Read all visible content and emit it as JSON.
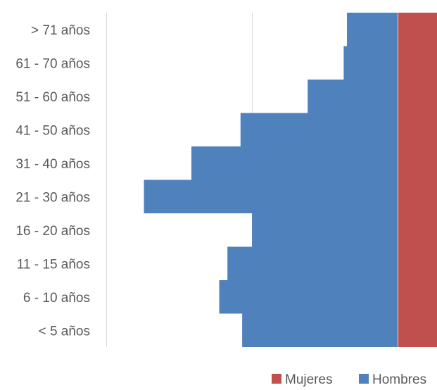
{
  "chart_data": {
    "type": "bar",
    "orientation": "horizontal",
    "layout": "population-pyramid",
    "categories": [
      "< 5 años",
      "6 - 10 años",
      "11 - 15 años",
      "16 - 20 años",
      "21 - 30 años",
      "31 - 40 años",
      "41 - 50 años",
      "51 - 60 años",
      "61 - 70 años",
      "> 71 años"
    ],
    "series": [
      {
        "name": "Mujeres",
        "color": "#C0504D",
        "values": [
          0.24,
          0.24,
          0.24,
          0.24,
          0.24,
          0.24,
          0.24,
          0.24,
          0.24,
          0.24
        ]
      },
      {
        "name": "Hombres",
        "color": "#4F81BD",
        "values": [
          -0.95,
          -1.09,
          -1.04,
          -0.89,
          -1.55,
          -1.26,
          -0.96,
          -0.55,
          -0.33,
          -0.31
        ]
      }
    ],
    "xlim": [
      -1.78,
      0.24
    ],
    "gridlines_x": [
      -1.78,
      -0.89
    ],
    "axis_line_x": 0,
    "title": "",
    "xlabel": "",
    "ylabel": "",
    "legend": {
      "position": "bottom-right",
      "items": [
        "Mujeres",
        "Hombres"
      ]
    },
    "grid": true
  }
}
